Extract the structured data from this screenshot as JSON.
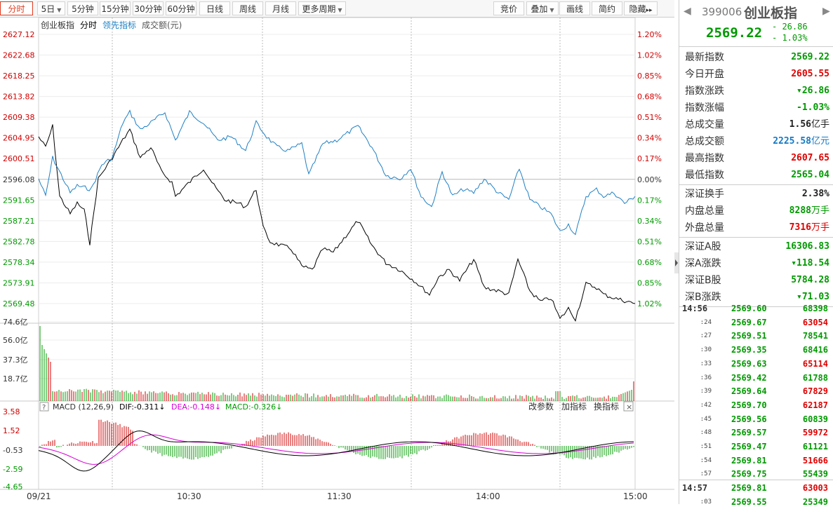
{
  "toolbar": {
    "tabs": [
      {
        "label": "分时",
        "active": true
      },
      {
        "label": "5日",
        "dropdown": true
      },
      {
        "label": "5分钟"
      },
      {
        "label": "15分钟"
      },
      {
        "label": "30分钟"
      },
      {
        "label": "60分钟"
      },
      {
        "label": "日线"
      },
      {
        "label": "周线"
      },
      {
        "label": "月线"
      },
      {
        "label": "更多周期",
        "dropdown": true
      }
    ],
    "right_buttons": [
      {
        "label": "竞价"
      },
      {
        "label": "叠加",
        "dropdown": true
      },
      {
        "label": "画线"
      },
      {
        "label": "简约"
      },
      {
        "label": "隐藏",
        "arrow": "▸▸"
      }
    ]
  },
  "legend": {
    "name": "创业板指",
    "mode": "分时",
    "lead": "领先指标",
    "vol": "成交额(元)"
  },
  "price_axis": {
    "left_labels": [
      "2627.12",
      "2622.68",
      "2618.25",
      "2613.82",
      "2609.38",
      "2604.95",
      "2600.51",
      "2596.08",
      "2591.65",
      "2587.21",
      "2582.78",
      "2578.34",
      "2573.91",
      "2569.48"
    ],
    "right_labels": [
      "1.20%",
      "1.02%",
      "0.85%",
      "0.68%",
      "0.51%",
      "0.34%",
      "0.17%",
      "0.00%",
      "0.17%",
      "0.34%",
      "0.51%",
      "0.68%",
      "0.85%",
      "1.02%"
    ]
  },
  "volume_axis": {
    "labels": [
      "74.6亿",
      "56.0亿",
      "37.3亿",
      "18.7亿"
    ]
  },
  "macd": {
    "title": "MACD (12,26,9)",
    "dif": "DIF:-0.311↓",
    "dea": "DEA:-0.148↓",
    "macd": "MACD:-0.326↓",
    "buttons": [
      "改参数",
      "加指标",
      "换指标"
    ],
    "close": "×",
    "axis": [
      "3.58",
      "1.52",
      "-0.53",
      "-2.59",
      "-4.65"
    ],
    "help": "?"
  },
  "time_axis": [
    "09/21",
    "10:30",
    "11:30",
    "14:00",
    "15:00"
  ],
  "colors": {
    "price": "#1f80c4",
    "avg": "#000000",
    "up": "#d00000",
    "down": "#009900",
    "dea": "#d600d6"
  },
  "panel": {
    "code": "399006",
    "name": "创业板指",
    "price": "2569.22",
    "change": "- 26.86",
    "pct": "- 1.03%",
    "rows1": [
      {
        "k": "最新指数",
        "v": "2569.22",
        "c": "green"
      },
      {
        "k": "今日开盘",
        "v": "2605.55",
        "c": "red"
      },
      {
        "k": "指数涨跌",
        "v": "▾26.86",
        "c": "green"
      },
      {
        "k": "指数涨幅",
        "v": "-1.03%",
        "c": "green"
      },
      {
        "k": "总成交量",
        "v": "1.56",
        "u": "亿手",
        "c": "black"
      },
      {
        "k": "总成交额",
        "v": "2225.58",
        "u": "亿元",
        "c": "blue"
      },
      {
        "k": "最高指数",
        "v": "2607.65",
        "c": "red"
      },
      {
        "k": "最低指数",
        "v": "2565.04",
        "c": "green"
      }
    ],
    "rows2": [
      {
        "k": "深证换手",
        "v": "2.38%",
        "c": "black"
      },
      {
        "k": "内盘总量",
        "v": "8288",
        "u": "万手",
        "c": "green"
      },
      {
        "k": "外盘总量",
        "v": "7316",
        "u": "万手",
        "c": "red"
      }
    ],
    "rows3": [
      {
        "k": "深证A股",
        "v": "16306.83",
        "c": "green"
      },
      {
        "k": "深A涨跌",
        "v": "▾118.54",
        "c": "green"
      },
      {
        "k": "深证B股",
        "v": "5784.28",
        "c": "green"
      },
      {
        "k": "深B涨跌",
        "v": "▾71.03",
        "c": "green"
      }
    ],
    "ticks": [
      {
        "t": "14:56",
        "p": "2569.60",
        "q": "68398",
        "c": "green",
        "big": true
      },
      {
        "t": ":24",
        "p": "2569.67",
        "q": "63054",
        "c": "red"
      },
      {
        "t": ":27",
        "p": "2569.51",
        "q": "78541",
        "c": "green"
      },
      {
        "t": ":30",
        "p": "2569.35",
        "q": "68416",
        "c": "green"
      },
      {
        "t": ":33",
        "p": "2569.63",
        "q": "65114",
        "c": "red"
      },
      {
        "t": ":36",
        "p": "2569.42",
        "q": "61788",
        "c": "green"
      },
      {
        "t": ":39",
        "p": "2569.64",
        "q": "67829",
        "c": "red"
      },
      {
        "t": ":42",
        "p": "2569.70",
        "q": "62187",
        "c": "red"
      },
      {
        "t": ":45",
        "p": "2569.56",
        "q": "60839",
        "c": "green"
      },
      {
        "t": ":48",
        "p": "2569.57",
        "q": "59972",
        "c": "red"
      },
      {
        "t": ":51",
        "p": "2569.47",
        "q": "61121",
        "c": "green"
      },
      {
        "t": ":54",
        "p": "2569.81",
        "q": "51666",
        "c": "red"
      },
      {
        "t": ":57",
        "p": "2569.75",
        "q": "55439",
        "c": "green"
      },
      {
        "t": "14:57",
        "p": "2569.81",
        "q": "63003",
        "c": "red",
        "big": true
      },
      {
        "t": ":03",
        "p": "2569.55",
        "q": "25349",
        "c": "green"
      }
    ]
  }
}
